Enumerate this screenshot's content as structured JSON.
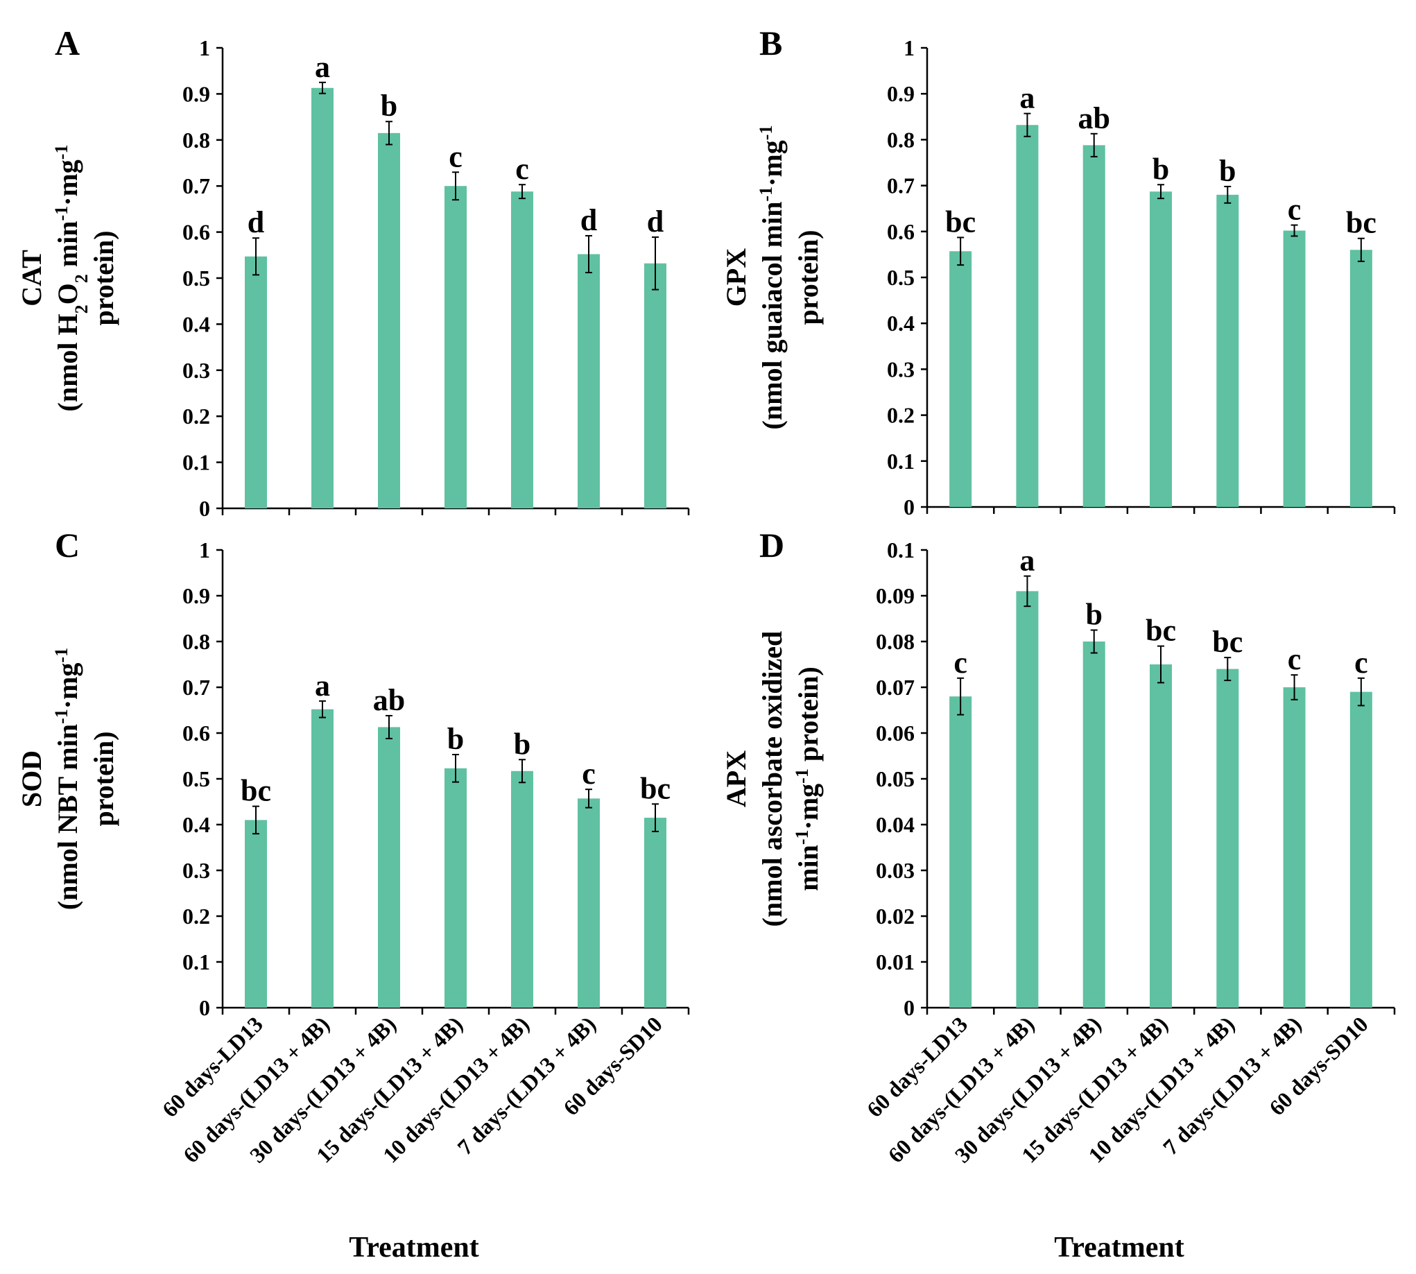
{
  "bar_color": "#5fc1a1",
  "xlabel": "Treatment",
  "categories": [
    "60 days-LD13",
    "60 days-(LD13 + 4B)",
    "30 days-(LD13 + 4B)",
    "15 days-(LD13 + 4B)",
    "10 days-(LD13 + 4B)",
    "7 days-(LD13 + 4B)",
    "60 days-SD10"
  ],
  "chart_data": [
    {
      "type": "bar",
      "panel": "A",
      "ylim": [
        0,
        1
      ],
      "yticks": [
        "0",
        "0.1",
        "0.2",
        "0.3",
        "0.4",
        "0.5",
        "0.6",
        "0.7",
        "0.8",
        "0.9",
        "1"
      ],
      "ylabel_lines": [
        [
          {
            "t": "CAT"
          }
        ],
        [
          {
            "t": "(nmol H"
          },
          {
            "t": "2",
            "sub": true
          },
          {
            "t": "O"
          },
          {
            "t": "2",
            "sub": true
          },
          {
            "t": " min"
          },
          {
            "t": "-1",
            "sup": true
          },
          {
            "t": "·mg"
          },
          {
            "t": "-1",
            "sup": true
          }
        ],
        [
          {
            "t": "protein)"
          }
        ]
      ],
      "values": [
        0.547,
        0.913,
        0.815,
        0.7,
        0.688,
        0.552,
        0.532
      ],
      "errors": [
        0.04,
        0.012,
        0.025,
        0.03,
        0.015,
        0.04,
        0.057
      ],
      "letters": [
        "d",
        "a",
        "b",
        "c",
        "c",
        "d",
        "d"
      ],
      "show_categories": false,
      "show_xlabel": false
    },
    {
      "type": "bar",
      "panel": "B",
      "ylim": [
        0,
        1
      ],
      "yticks": [
        "0",
        "0.1",
        "0.2",
        "0.3",
        "0.4",
        "0.5",
        "0.6",
        "0.7",
        "0.8",
        "0.9",
        "1"
      ],
      "ylabel_lines": [
        [
          {
            "t": "GPX"
          }
        ],
        [
          {
            "t": "(nmol guaiacol min"
          },
          {
            "t": "-1",
            "sup": true
          },
          {
            "t": "·mg"
          },
          {
            "t": "-1",
            "sup": true
          }
        ],
        [
          {
            "t": "protein)"
          }
        ]
      ],
      "values": [
        0.557,
        0.832,
        0.788,
        0.687,
        0.68,
        0.602,
        0.56
      ],
      "errors": [
        0.03,
        0.025,
        0.025,
        0.015,
        0.018,
        0.012,
        0.025
      ],
      "letters": [
        "bc",
        "a",
        "ab",
        "b",
        "b",
        "c",
        "bc"
      ],
      "show_categories": false,
      "show_xlabel": false
    },
    {
      "type": "bar",
      "panel": "C",
      "ylim": [
        0,
        1
      ],
      "yticks": [
        "0",
        "0.1",
        "0.2",
        "0.3",
        "0.4",
        "0.5",
        "0.6",
        "0.7",
        "0.8",
        "0.9",
        "1"
      ],
      "ylabel_lines": [
        [
          {
            "t": "SOD"
          }
        ],
        [
          {
            "t": "(nmol NBT min"
          },
          {
            "t": "-1",
            "sup": true
          },
          {
            "t": "·mg"
          },
          {
            "t": "-1",
            "sup": true
          }
        ],
        [
          {
            "t": "protein)"
          }
        ]
      ],
      "values": [
        0.41,
        0.652,
        0.613,
        0.523,
        0.517,
        0.457,
        0.415
      ],
      "errors": [
        0.03,
        0.018,
        0.025,
        0.03,
        0.025,
        0.02,
        0.03
      ],
      "letters": [
        "bc",
        "a",
        "ab",
        "b",
        "b",
        "c",
        "bc"
      ],
      "show_categories": true,
      "show_xlabel": true
    },
    {
      "type": "bar",
      "panel": "D",
      "ylim": [
        0,
        0.1
      ],
      "yticks": [
        "0",
        "0.01",
        "0.02",
        "0.03",
        "0.04",
        "0.05",
        "0.06",
        "0.07",
        "0.08",
        "0.09",
        "0.1"
      ],
      "ylabel_lines": [
        [
          {
            "t": "APX"
          }
        ],
        [
          {
            "t": "(nmol ascorbate oxidized"
          }
        ],
        [
          {
            "t": "min"
          },
          {
            "t": "-1",
            "sup": true
          },
          {
            "t": "·mg"
          },
          {
            "t": "-1",
            "sup": true
          },
          {
            "t": " protein)"
          }
        ]
      ],
      "values": [
        0.068,
        0.091,
        0.08,
        0.075,
        0.074,
        0.07,
        0.069
      ],
      "errors": [
        0.004,
        0.0033,
        0.0025,
        0.004,
        0.0025,
        0.0027,
        0.003
      ],
      "letters": [
        "c",
        "a",
        "b",
        "bc",
        "bc",
        "c",
        "c"
      ],
      "show_categories": true,
      "show_xlabel": true
    }
  ]
}
